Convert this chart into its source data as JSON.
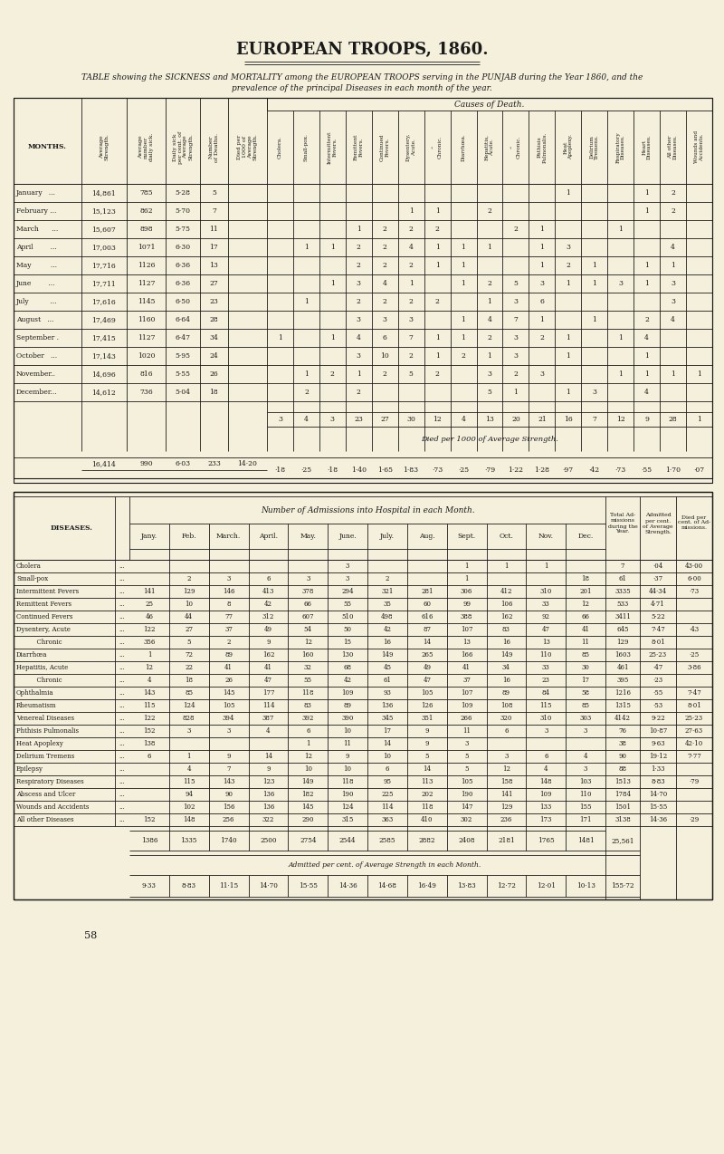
{
  "title": "EUROPEAN TROOPS, 1860.",
  "subtitle_line1": "TABLE showing the SICKNESS and MORTALITY among the EUROPEAN TROOPS serving in the PUNJAB during the Year 1860, and the",
  "subtitle_line2": "prevalence of the principal Diseases in each month of the year.",
  "bg_color": "#f5f0dc",
  "top_table": {
    "months": [
      "January   ...",
      "February ...",
      "March      ...",
      "April        ...",
      "May         ...",
      "June        ...",
      "July          ...",
      "August   ...",
      "September .",
      "October   ...",
      "November..",
      "December..."
    ],
    "avg_strength": [
      "14,861",
      "15,123",
      "15,607",
      "17,003",
      "17,716",
      "17,711",
      "17,616",
      "17,469",
      "17,415",
      "17,143",
      "14,696",
      "14,612"
    ],
    "avg_num_sick": [
      "785",
      "862",
      "898",
      "1071",
      "1126",
      "1127",
      "1145",
      "1160",
      "1127",
      "1020",
      "816",
      "736"
    ],
    "daily_sick_pct": [
      "5·28",
      "5·70",
      "5·75",
      "6·30",
      "6·36",
      "6·36",
      "6·50",
      "6·64",
      "6·47",
      "5·95",
      "5·55",
      "5·04"
    ],
    "num_deaths": [
      "5",
      "7",
      "11",
      "17",
      "13",
      "27",
      "23",
      "28",
      "34",
      "24",
      "26",
      "18"
    ],
    "cause_data": [
      [
        "...",
        "...",
        "...",
        "...",
        "...",
        "...",
        "...",
        "...",
        "...",
        "...",
        "...",
        "1",
        "...",
        "...",
        "1",
        "2",
        "..."
      ],
      [
        "...",
        "...",
        "...",
        "...",
        "...",
        "1",
        "1",
        "...",
        "2",
        "...",
        "...",
        "...",
        "...",
        "...",
        "1",
        "2",
        "..."
      ],
      [
        "...",
        "...",
        "...",
        "1",
        "2",
        "2",
        "2",
        "...",
        "...",
        "2",
        "1",
        "...",
        "...",
        "1",
        "...",
        "...",
        "..."
      ],
      [
        "...",
        "1",
        "1",
        "2",
        "2",
        "4",
        "1",
        "1",
        "1",
        "...",
        "1",
        "3",
        "...",
        "...",
        "...",
        "4",
        "..."
      ],
      [
        "...",
        "...",
        "...",
        "2",
        "2",
        "2",
        "1",
        "1",
        "...",
        "...",
        "1",
        "2",
        "1",
        "...",
        "1",
        "1",
        "..."
      ],
      [
        "...",
        "...",
        "1",
        "3",
        "4",
        "1",
        "...",
        "1",
        "2",
        "5",
        "3",
        "1",
        "1",
        "3",
        "1",
        "3",
        "..."
      ],
      [
        "...",
        "1",
        "...",
        "2",
        "2",
        "2",
        "2",
        "...",
        "1",
        "3",
        "6",
        "...",
        "...",
        "...",
        "...",
        "3",
        "..."
      ],
      [
        "...",
        "...",
        "...",
        "3",
        "3",
        "3",
        "...",
        "1",
        "4",
        "7",
        "1",
        "...",
        "1",
        "...",
        "2",
        "4",
        "..."
      ],
      [
        "1",
        "...",
        "1",
        "4",
        "6",
        "7",
        "1",
        "1",
        "2",
        "3",
        "2",
        "1",
        "...",
        "1",
        "4",
        "...",
        "..."
      ],
      [
        "...",
        "...",
        "...",
        "3",
        "10",
        "2",
        "1",
        "2",
        "1",
        "3",
        "...",
        "1",
        "...",
        "...",
        "1",
        "...",
        "..."
      ],
      [
        "...",
        "1",
        "2",
        "1",
        "2",
        "5",
        "2",
        "...",
        "3",
        "2",
        "3",
        "...",
        "...",
        "1",
        "1",
        "1",
        "1"
      ],
      [
        "...",
        "2",
        "...",
        "2",
        "...",
        "...",
        "...",
        "...",
        "5",
        "1",
        "...",
        "1",
        "3",
        "...",
        "4",
        "...",
        "..."
      ]
    ],
    "totals_row": [
      "3",
      "4",
      "3",
      "23",
      "27",
      "30",
      "12",
      "4",
      "13",
      "20",
      "21",
      "16",
      "7",
      "12",
      "9",
      "28",
      "1"
    ],
    "totals_avg": [
      "16,414",
      "990",
      "6·03",
      "233",
      "14·20",
      "·18",
      "·25",
      "·18",
      "1·40",
      "1·65",
      "1·83",
      "·73",
      "·25",
      "·79",
      "1·22",
      "1·28",
      "·97",
      "·42",
      "·73",
      "·55",
      "1·70",
      "·07"
    ]
  },
  "cause_headers": [
    "Cholera.",
    "Small-pox.",
    "Intermittent\nFevers.",
    "Remittent\nFevers.",
    "Continued\nFevers.",
    "Dysentery,\nAcute.",
    "“\nChronic.",
    "Diarrhœa.",
    "Hepatitis,\nAcute.",
    "“\nChronic.",
    "Phthisis\nPulmonalis.",
    "Heat\nApoplexy.",
    "Delirium\nTremens.",
    "Respiratory\nDiseases.",
    "Heart\nDiseases.",
    "All other\nDiseases.",
    "Wounds and\nAccidents."
  ],
  "left_col_headers": [
    "Average\nStrength.",
    "Average\nnumber\ndaily sick.",
    "Daily sick\nper cent. of\nAverage\nStrength.",
    "Number\nof Deaths.",
    "Died per\n1000 of\nAverage\nStrength."
  ],
  "bottom_table": {
    "diseases": [
      "Cholera",
      "Small-pox",
      "Intermittent Fevers",
      "Remittent Fevers",
      "Continued Fevers",
      "Dysentery, Acute",
      "          Chronic",
      "Diarrhœa",
      "Hepatitis, Acute",
      "          Chronic",
      "Ophthalmia",
      "Rheumatism",
      "Venereal Diseases",
      "Phthisis Pulmonalis",
      "Heat Apoplexy",
      "Delirium Tremens",
      "Epilepsy",
      "Respiratory Diseases",
      "Abscess and Ulcer",
      "Wounds and Accidents",
      "All other Diseases"
    ],
    "dots": [
      "...",
      "...",
      "...",
      "...",
      "...",
      "...",
      "...",
      "...",
      "...",
      "...",
      "...",
      "...",
      "...",
      "...",
      "...",
      "...",
      "...",
      "...",
      "...",
      "...",
      "..."
    ],
    "month_data": [
      [
        "",
        "",
        "",
        "",
        "",
        "3",
        "",
        "",
        "1",
        "1",
        "1",
        ""
      ],
      [
        "",
        "2",
        "3",
        "6",
        "3",
        "3",
        "2",
        "",
        "1",
        "",
        "",
        "18"
      ],
      [
        "141",
        "129",
        "146",
        "413",
        "378",
        "294",
        "321",
        "281",
        "306",
        "412",
        "310",
        "201"
      ],
      [
        "25",
        "10",
        "8",
        "42",
        "66",
        "55",
        "35",
        "60",
        "99",
        "106",
        "33",
        "12"
      ],
      [
        "46",
        "44",
        "77",
        "312",
        "607",
        "510",
        "498",
        "616",
        "388",
        "162",
        "92",
        "66"
      ],
      [
        "122",
        "27",
        "37",
        "49",
        "54",
        "50",
        "42",
        "87",
        "107",
        "83",
        "47",
        "41"
      ],
      [
        "356",
        "5",
        "2",
        "9",
        "12",
        "15",
        "16",
        "14",
        "13",
        "16",
        "13",
        "11"
      ],
      [
        "1",
        "72",
        "89",
        "162",
        "160",
        "130",
        "149",
        "265",
        "166",
        "149",
        "110",
        "85"
      ],
      [
        "12",
        "22",
        "41",
        "41",
        "32",
        "68",
        "45",
        "49",
        "41",
        "34",
        "33",
        "30"
      ],
      [
        "4",
        "18",
        "26",
        "47",
        "55",
        "42",
        "61",
        "47",
        "37",
        "16",
        "23",
        "17"
      ],
      [
        "143",
        "85",
        "145",
        "177",
        "118",
        "109",
        "93",
        "105",
        "107",
        "89",
        "84",
        "58"
      ],
      [
        "115",
        "124",
        "105",
        "114",
        "83",
        "89",
        "136",
        "126",
        "109",
        "108",
        "115",
        "85"
      ],
      [
        "122",
        "828",
        "394",
        "387",
        "392",
        "390",
        "345",
        "351",
        "266",
        "320",
        "310",
        "303"
      ],
      [
        "152",
        "3",
        "3",
        "4",
        "6",
        "10",
        "17",
        "9",
        "11",
        "6",
        "3",
        "3"
      ],
      [
        "138",
        "",
        "",
        "",
        "1",
        "11",
        "14",
        "9",
        "3",
        "",
        "",
        ""
      ],
      [
        "6",
        "1",
        "9",
        "14",
        "12",
        "9",
        "10",
        "5",
        "5",
        "3",
        "6",
        "4"
      ],
      [
        "",
        "4",
        "7",
        "9",
        "10",
        "10",
        "6",
        "14",
        "5",
        "12",
        "4",
        "3"
      ],
      [
        "",
        "115",
        "143",
        "123",
        "149",
        "118",
        "95",
        "113",
        "105",
        "158",
        "148",
        "103"
      ],
      [
        "",
        "94",
        "90",
        "136",
        "182",
        "190",
        "225",
        "202",
        "190",
        "141",
        "109",
        "110"
      ],
      [
        "",
        "102",
        "156",
        "136",
        "145",
        "124",
        "114",
        "118",
        "147",
        "129",
        "133",
        "155"
      ],
      [
        "152",
        "148",
        "256",
        "322",
        "290",
        "315",
        "363",
        "410",
        "302",
        "236",
        "173",
        "171"
      ]
    ],
    "total_admissions": [
      "7",
      "61",
      "3335",
      "533",
      "3411",
      "645",
      "129",
      "1603",
      "461",
      "395",
      "1216",
      "1315",
      "4142",
      "76",
      "38",
      "90",
      "88",
      "1513",
      "1784",
      "1501",
      "3138"
    ],
    "admitted_pct": [
      "·04",
      "·37",
      "44·34",
      "4·71",
      "5·22",
      "7·47",
      "8·01",
      "25·23",
      "·47",
      "·23",
      "·55",
      "·53",
      "9·22",
      "10·87",
      "9·63",
      "19·12",
      "1·33",
      "8·83",
      "14·70",
      "15·55",
      "14·36"
    ],
    "died_pct": [
      "43·00",
      "6·00",
      "·73",
      "",
      "",
      "·43",
      "",
      "·25",
      "3·86",
      "",
      "7·47",
      "8·01",
      "25·23",
      "27·63",
      "42·10",
      "7·77",
      "",
      "·79",
      "",
      "",
      "·29"
    ],
    "month_totals": [
      "1386",
      "1335",
      "1740",
      "2500",
      "2754",
      "2544",
      "2585",
      "2882",
      "2408",
      "2181",
      "1765",
      "1481"
    ],
    "grand_total": "25,561",
    "admitted_pct_months": [
      "9·33",
      "8·83",
      "11·15",
      "14·70",
      "15·55",
      "14·36",
      "14·68",
      "16·49",
      "13·83",
      "12·72",
      "12·01",
      "10·13"
    ],
    "admitted_pct_total": "155·72"
  },
  "page_number": "58"
}
